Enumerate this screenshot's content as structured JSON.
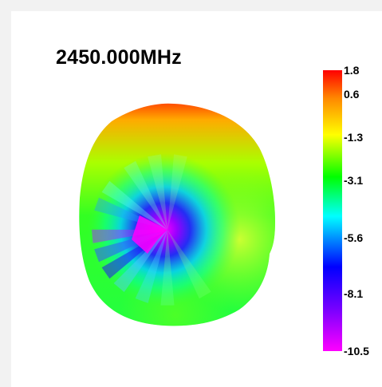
{
  "chart_data": {
    "type": "heatmap",
    "title": "2450.000MHz",
    "colorbar": {
      "tick_labels": [
        "1.8",
        "0.6",
        "-1.3",
        "-3.1",
        "-5.6",
        "-8.1",
        "-10.5"
      ],
      "tick_values": [
        1.8,
        0.6,
        -1.3,
        -3.1,
        -5.6,
        -8.1,
        -10.5
      ],
      "range": [
        -10.5,
        1.8
      ],
      "colormap": [
        "#ff0000",
        "#ff8800",
        "#ffff00",
        "#00ff00",
        "#00ffff",
        "#0000ff",
        "#ff00ff"
      ]
    },
    "pattern": "3D radiation pattern (shaded surface)",
    "peak_region": "top",
    "null_region": "center-left"
  }
}
